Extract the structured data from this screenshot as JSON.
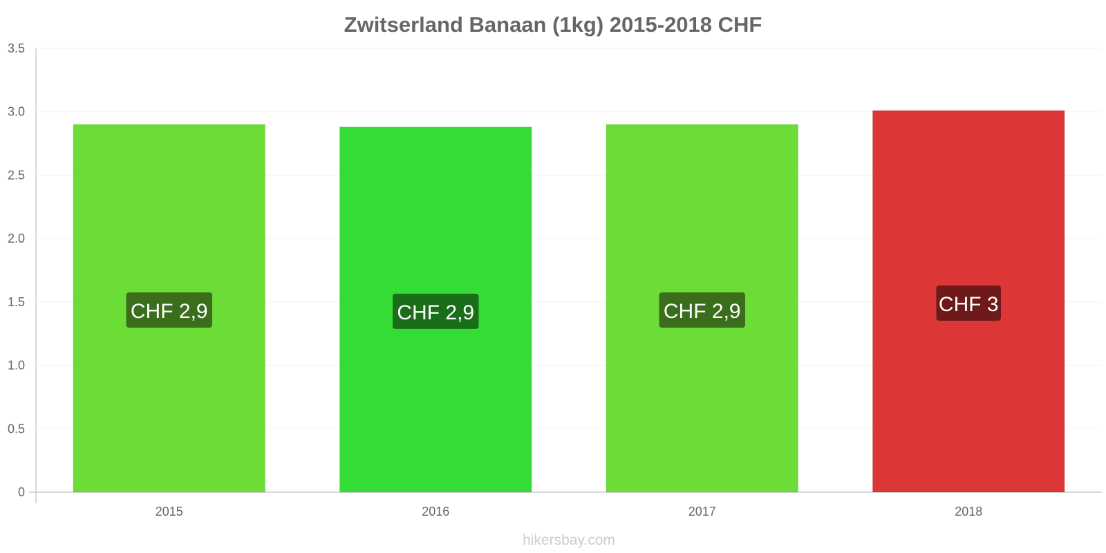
{
  "chart_data": {
    "type": "bar",
    "title": "Zwitserland Banaan (1kg) 2015-2018 CHF",
    "xlabel": "",
    "ylabel": "",
    "categories": [
      "2015",
      "2016",
      "2017",
      "2018"
    ],
    "values": [
      2.9,
      2.88,
      2.9,
      3.01
    ],
    "data_labels": [
      "CHF 2,9",
      "CHF 2,9",
      "CHF 2,9",
      "CHF 3"
    ],
    "bar_colors": [
      "#6cdc36",
      "#36dc36",
      "#6cdc36",
      "#dc3636"
    ],
    "label_bg_colors": [
      "#3a6e1c",
      "#1a6e1a",
      "#3a6e1c",
      "#6e1a1a"
    ],
    "ylim": [
      0,
      3.5
    ],
    "yticks": [
      "0",
      "0.5",
      "1.0",
      "1.5",
      "2.0",
      "2.5",
      "3.0",
      "3.5"
    ],
    "grid": true,
    "legend": "none"
  },
  "watermark": "hikersbay.com"
}
